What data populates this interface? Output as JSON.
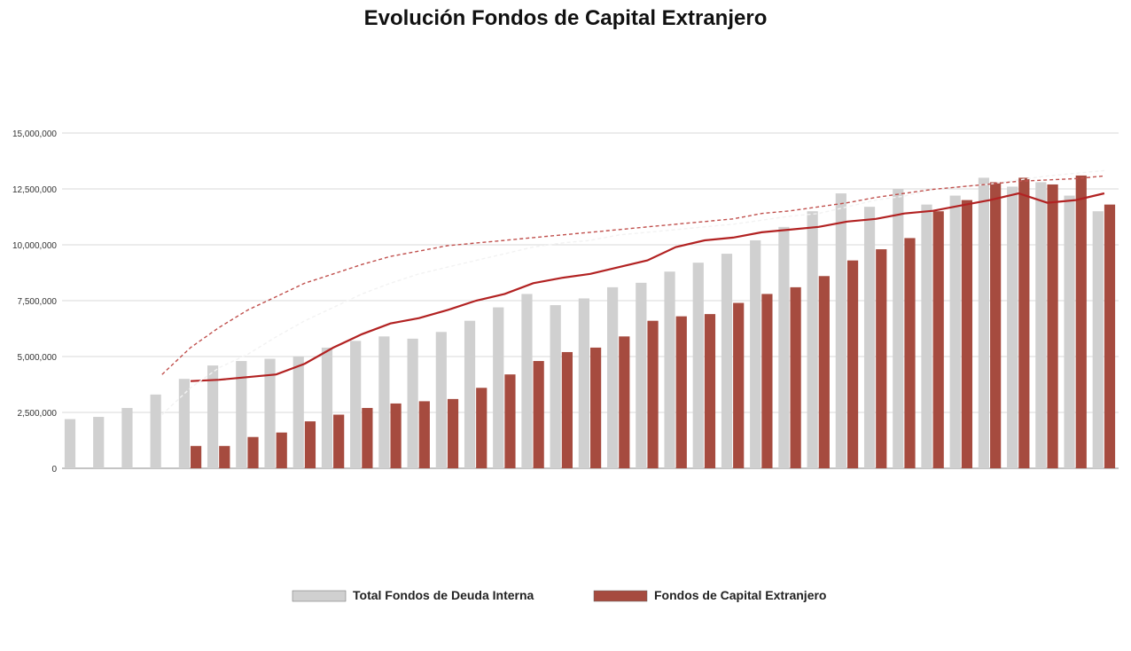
{
  "chart_data": {
    "type": "bar",
    "title": "Evolución Fondos de Capital Extranjero",
    "series": [
      {
        "name": "Total Fondos de Deuda Interna",
        "kind": "bar",
        "values": [
          2200000,
          2300000,
          2700000,
          3300000,
          4000000,
          4600000,
          4800000,
          4900000,
          5000000,
          5400000,
          5700000,
          5900000,
          5800000,
          6100000,
          6600000,
          7200000,
          7800000,
          7300000,
          7600000,
          8100000,
          8300000,
          8800000,
          9200000,
          9600000,
          10200000,
          10800000,
          11500000,
          12300000,
          11700000,
          12500000,
          11800000,
          12200000,
          13000000,
          12600000,
          12800000,
          12200000,
          11500000
        ]
      },
      {
        "name": "Fondos de Capital Extranjero",
        "kind": "bar",
        "values": [
          0,
          0,
          0,
          0,
          1000000,
          1000000,
          1400000,
          1600000,
          2100000,
          2400000,
          2700000,
          2900000,
          3000000,
          3100000,
          3600000,
          4200000,
          4800000,
          5200000,
          5400000,
          5900000,
          6600000,
          6800000,
          6900000,
          7400000,
          7800000,
          8100000,
          8600000,
          9300000,
          9800000,
          10300000,
          11500000,
          12000000,
          12800000,
          13000000,
          12700000,
          13100000,
          11800000
        ]
      },
      {
        "name": "",
        "kind": "line",
        "color": "#b22222",
        "values": [
          null,
          null,
          null,
          null,
          0.065,
          0.066,
          0.068,
          0.07,
          0.078,
          0.09,
          0.1,
          0.108,
          0.112,
          0.118,
          0.125,
          0.13,
          0.138,
          0.142,
          0.145,
          0.15,
          0.155,
          0.165,
          0.17,
          0.172,
          0.176,
          0.178,
          0.18,
          0.184,
          0.186,
          0.19,
          0.192,
          0.196,
          0.2,
          0.205,
          0.198,
          0.2,
          0.205
        ]
      },
      {
        "name": "",
        "kind": "line",
        "color": "#f2f2f2",
        "values": [
          null,
          null,
          null,
          0.04,
          0.06,
          0.075,
          0.085,
          0.098,
          0.11,
          0.12,
          0.13,
          0.138,
          0.145,
          0.15,
          0.155,
          0.16,
          0.165,
          0.168,
          0.17,
          0.174,
          0.176,
          0.178,
          0.18,
          0.182,
          0.185,
          0.188,
          0.19,
          0.195,
          0.2,
          0.203,
          0.208,
          0.21,
          0.212,
          0.215,
          0.218,
          0.22,
          0.222
        ]
      },
      {
        "name": "",
        "kind": "line",
        "color": "#c0504d",
        "values": [
          null,
          null,
          null,
          0.07,
          0.09,
          0.105,
          0.118,
          0.128,
          0.138,
          0.145,
          0.152,
          0.158,
          0.162,
          0.166,
          0.168,
          0.17,
          0.172,
          0.174,
          0.176,
          0.178,
          0.18,
          0.182,
          0.184,
          0.186,
          0.19,
          0.192,
          0.195,
          0.198,
          0.202,
          0.205,
          0.208,
          0.21,
          0.212,
          0.214,
          0.215,
          0.216,
          0.218
        ]
      }
    ],
    "ylim": [
      0,
      15000000
    ],
    "yticks": [
      "0",
      "2,500,000",
      "5,000,000",
      "7,500,000",
      "10,000,000",
      "12,500,000",
      "15,000,000"
    ],
    "legend_placement": "bottom",
    "colors": {
      "background": "#ffffff",
      "bar_primary": "#a64b3f",
      "bar_secondary": "#d0d0d0",
      "line_primary": "#b22222",
      "line_secondary": "#f2f2f2",
      "line_tertiary": "#c0504d",
      "title": "#111111"
    }
  }
}
